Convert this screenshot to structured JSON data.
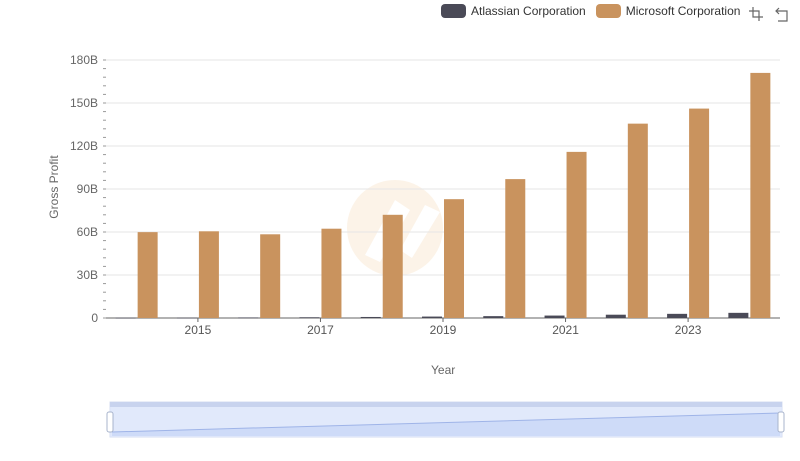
{
  "legend": {
    "items": [
      {
        "name": "Atlassian Corporation",
        "color": "#4a4a57"
      },
      {
        "name": "Microsoft Corporation",
        "color": "#c9935e"
      }
    ]
  },
  "toolbar": {
    "zoom_icon": "zoom-select-icon",
    "reset_icon": "zoom-reset-icon"
  },
  "chart_data": {
    "type": "bar",
    "title": "",
    "xlabel": "Year",
    "ylabel": "Gross Profit",
    "x": [
      2014,
      2015,
      2016,
      2017,
      2018,
      2019,
      2020,
      2021,
      2022,
      2023,
      2024
    ],
    "x_ticks": [
      "2015",
      "2017",
      "2019",
      "2021",
      "2023"
    ],
    "y_ticks": [
      "0",
      "30B",
      "60B",
      "90B",
      "120B",
      "150B",
      "180B"
    ],
    "ylim": [
      0,
      180
    ],
    "y_unit": "B",
    "grid": true,
    "legend_position": "top-right",
    "series": [
      {
        "name": "Atlassian Corporation",
        "color": "#4a4a57",
        "values": [
          0.2,
          0.27,
          0.38,
          0.52,
          0.72,
          1.0,
          1.3,
          1.7,
          2.3,
          2.9,
          3.6
        ]
      },
      {
        "name": "Microsoft Corporation",
        "color": "#c9935e",
        "values": [
          59.9,
          60.5,
          58.4,
          62.3,
          72.0,
          82.9,
          96.9,
          115.9,
          135.6,
          146.1,
          171.0
        ]
      }
    ]
  }
}
